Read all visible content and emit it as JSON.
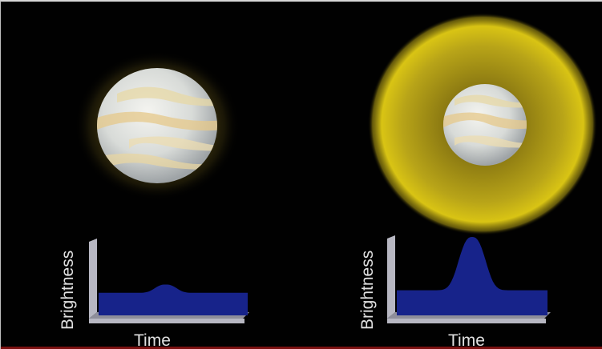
{
  "colors": {
    "background": "#010101",
    "glow": "#d9c414",
    "curve": "#17238a",
    "axis": "#b7b7c2",
    "text": "#e0e0e0"
  },
  "panels": [
    {
      "id": "left",
      "y_label": "Brightness",
      "x_label": "Time",
      "curve": {
        "baseline": 0.3,
        "peak": 0.41,
        "peak_center": 0.45,
        "peak_width": 0.18
      }
    },
    {
      "id": "right",
      "y_label": "Brightness",
      "x_label": "Time",
      "curve": {
        "baseline": 0.32,
        "peak": 1.0,
        "peak_center": 0.5,
        "peak_width": 0.22
      }
    }
  ]
}
